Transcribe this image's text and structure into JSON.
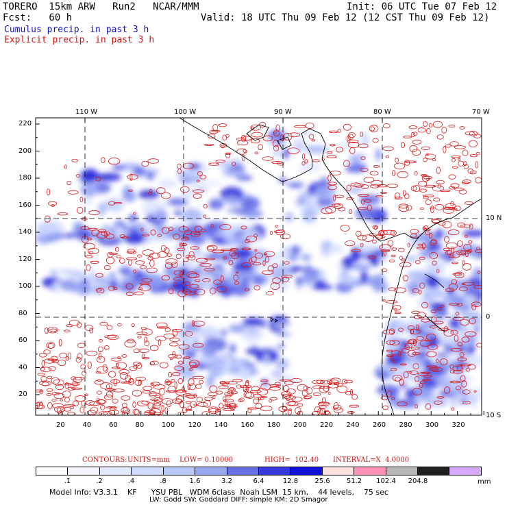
{
  "header": {
    "model_line": "TORERO  15km ARW   Run2   NCAR/MMM",
    "init": "Init: 06 UTC Tue 07 Feb 12",
    "fcst": "Fcst:   60 h",
    "valid": "Valid: 18 UTC Thu 09 Feb 12 (12 CST Thu 09 Feb 12)",
    "cumulus": "Cumulus precip. in past 3 h",
    "explicit": "Explicit precip. in past 3 h"
  },
  "axes": {
    "top_lon": [
      "110 W",
      "100 W",
      "90 W",
      "80 W",
      "70 W"
    ],
    "right_lat": [
      "10 N",
      "0",
      "10 S"
    ],
    "left_y": [
      "220",
      "200",
      "180",
      "160",
      "140",
      "120",
      "100",
      "80",
      "60",
      "40",
      "20"
    ],
    "bottom_x": [
      "20",
      "40",
      "60",
      "80",
      "100",
      "120",
      "140",
      "160",
      "180",
      "200",
      "220",
      "240",
      "260",
      "280",
      "300",
      "320"
    ]
  },
  "contours": {
    "label": "CONTOURS:",
    "units": "UNITS=mm",
    "low": "LOW= 0.10000",
    "high": "HIGH=  102.40",
    "interval": "INTERVAL=X  4.0000"
  },
  "colorbar": {
    "colors": [
      "#ffffff",
      "#f4f4ff",
      "#e2e8ff",
      "#d0dcff",
      "#b8c8f8",
      "#98a8f0",
      "#6870e8",
      "#3838e0",
      "#1010d8",
      "#ffe0e0",
      "#ff90b8",
      "#b8b8b8",
      "#202020",
      "#d8a8ff"
    ],
    "labels": [
      ".1",
      ".2",
      ".4",
      ".8",
      "1.6",
      "3.2",
      "6.4",
      "12.8",
      "25.6",
      "51.2",
      "102.4",
      "204.8"
    ],
    "unit": "mm"
  },
  "footer": {
    "line1": "Model Info: V3.3.1    KF      YSU PBL   WDM 6class  Noah LSM  15 km,    44 levels,    75 sec",
    "line2": "LW: Godd SW: Goddard DIFF: simple KM: 2D Smagor"
  }
}
